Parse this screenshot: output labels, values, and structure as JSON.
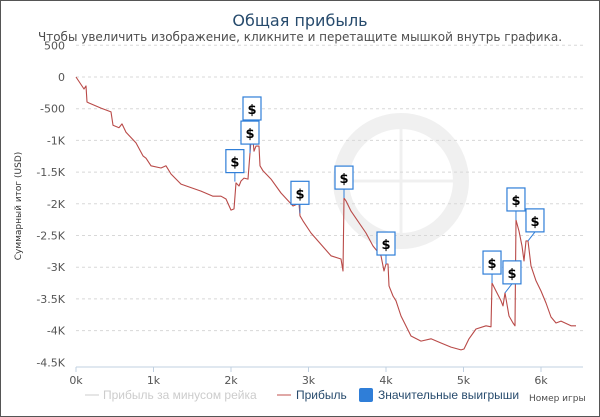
{
  "chart_data": {
    "type": "line",
    "title": "Общая прибыль",
    "subtitle": "Чтобы увеличить изображение, кликните и перетащите мышкой внутрь графика.",
    "xlabel": "Номер игры",
    "ylabel": "Суммарный итог (USD)",
    "xlim": [
      0,
      6550
    ],
    "ylim": [
      -4500,
      500
    ],
    "grid": true,
    "legend_position": "bottom",
    "watermark": "SHARKSCOPE",
    "x_ticks": [
      {
        "v": 0,
        "label": "0k"
      },
      {
        "v": 1000,
        "label": "1k"
      },
      {
        "v": 2000,
        "label": "2k"
      },
      {
        "v": 3000,
        "label": "3k"
      },
      {
        "v": 4000,
        "label": "4k"
      },
      {
        "v": 5000,
        "label": "5k"
      },
      {
        "v": 6000,
        "label": "6k"
      }
    ],
    "y_ticks": [
      {
        "v": 500,
        "label": "500"
      },
      {
        "v": 0,
        "label": "0"
      },
      {
        "v": -500,
        "label": "-500"
      },
      {
        "v": -1000,
        "label": "-1K"
      },
      {
        "v": -1500,
        "label": "-1.5K"
      },
      {
        "v": -2000,
        "label": "-2K"
      },
      {
        "v": -2500,
        "label": "-2.5K"
      },
      {
        "v": -3000,
        "label": "-3K"
      },
      {
        "v": -3500,
        "label": "-3.5K"
      },
      {
        "v": -4000,
        "label": "-4K"
      },
      {
        "v": -4500,
        "label": "-4.5K"
      }
    ],
    "legend": [
      {
        "name": "Прибыль за минусом рейка",
        "color": "#cccccc",
        "visible": false
      },
      {
        "name": "Прибыль",
        "color": "#c0504d",
        "visible": true
      },
      {
        "name": "Значительные выигрыши",
        "color": "#2f7ed8",
        "visible": true
      }
    ],
    "series": [
      {
        "name": "Прибыль",
        "color": "#b94a48",
        "x": [
          0,
          103,
          129,
          142,
          168,
          323,
          452,
          477,
          555,
          594,
          645,
          774,
          865,
          903,
          968,
          1097,
          1161,
          1226,
          1355,
          1613,
          1768,
          1871,
          1935,
          2000,
          2039,
          2065,
          2103,
          2129,
          2168,
          2219,
          2245,
          2271,
          2297,
          2323,
          2361,
          2374,
          2413,
          2516,
          2645,
          2800,
          2877,
          2890,
          2929,
          3032,
          3290,
          3419,
          3445,
          3458,
          3484,
          3548,
          3742,
          3832,
          3935,
          3974,
          4000,
          4026,
          4039,
          4090,
          4129,
          4194,
          4323,
          4452,
          4581,
          4710,
          4839,
          4968,
          5006,
          5071,
          5161,
          5290,
          5355,
          5368,
          5419,
          5484,
          5510,
          5535,
          5587,
          5639,
          5665,
          5677,
          5716,
          5755,
          5781,
          5806,
          5832,
          5871,
          5935,
          6000,
          6065,
          6129,
          6194,
          6258,
          6387,
          6452
        ],
        "y": [
          0,
          -190,
          -140,
          -395,
          -410,
          -490,
          -550,
          -760,
          -800,
          -740,
          -870,
          -1040,
          -1245,
          -1280,
          -1400,
          -1435,
          -1400,
          -1530,
          -1690,
          -1800,
          -1880,
          -1880,
          -1925,
          -2100,
          -2080,
          -1670,
          -1720,
          -1640,
          -1595,
          -1610,
          -1200,
          -820,
          -1170,
          -1090,
          -1090,
          -1400,
          -1480,
          -1610,
          -1830,
          -2035,
          -1990,
          -2190,
          -2270,
          -2460,
          -2820,
          -2870,
          -3060,
          -1910,
          -1955,
          -2115,
          -2460,
          -2665,
          -2820,
          -3060,
          -2950,
          -2950,
          -3295,
          -3455,
          -3530,
          -3770,
          -4085,
          -4165,
          -4130,
          -4195,
          -4260,
          -4305,
          -4290,
          -4130,
          -3975,
          -3925,
          -3940,
          -3250,
          -3375,
          -3530,
          -3610,
          -3405,
          -3770,
          -3880,
          -3925,
          -2255,
          -2430,
          -2665,
          -2900,
          -2585,
          -2585,
          -2980,
          -3215,
          -3375,
          -3565,
          -3785,
          -3880,
          -3850,
          -3925,
          -3925
        ]
      }
    ],
    "significant_wins": {
      "label": "$",
      "points": [
        {
          "x": 2050,
          "y": -1650
        },
        {
          "x": 2271,
          "y": -820
        },
        {
          "x": 2245,
          "y": -1200
        },
        {
          "x": 2890,
          "y": -2150
        },
        {
          "x": 3458,
          "y": -1910
        },
        {
          "x": 4000,
          "y": -2950
        },
        {
          "x": 5368,
          "y": -3250
        },
        {
          "x": 5535,
          "y": -3405
        },
        {
          "x": 5677,
          "y": -2255
        },
        {
          "x": 5832,
          "y": -2585
        }
      ]
    }
  }
}
